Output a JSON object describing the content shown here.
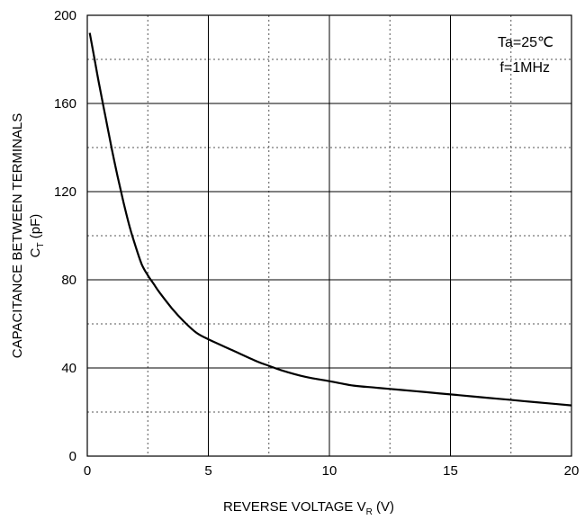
{
  "chart_data": {
    "type": "line",
    "xlabel": "REVERSE VOLTAGE V",
    "xlabel_subscript": "R",
    "xlabel_unit": " (V)",
    "ylabel": "CAPACITANCE BETWEEN TERMINALS",
    "ylabel2": "C",
    "ylabel2_subscript": "T",
    "ylabel2_unit": " (pF)",
    "xlim": [
      0,
      20
    ],
    "ylim": [
      0,
      200
    ],
    "x_major_ticks": [
      0,
      5,
      10,
      15,
      20
    ],
    "x_minor_ticks": [
      2.5,
      7.5,
      12.5,
      17.5
    ],
    "y_major_ticks": [
      0,
      40,
      80,
      120,
      160,
      200
    ],
    "y_minor_ticks": [
      20,
      60,
      100,
      140,
      180
    ],
    "x_tick_labels": [
      "0",
      "5",
      "10",
      "15",
      "20"
    ],
    "y_tick_labels": [
      "0",
      "40",
      "80",
      "120",
      "160",
      "200"
    ],
    "grid": "major solid, minor dotted",
    "annotations": [
      "Ta=25℃",
      "f=1MHz"
    ],
    "annotation_position": "top-right",
    "series": [
      {
        "x": [
          0.1,
          0.3,
          0.5,
          0.75,
          1.0,
          1.25,
          1.5,
          1.75,
          2.0,
          2.25,
          2.5,
          2.75,
          3.0,
          3.5,
          4.0,
          4.5,
          5.0,
          6.0,
          7.0,
          7.5,
          8.0,
          9.0,
          10.0,
          11.0,
          12.0,
          13.0,
          14.0,
          15.0,
          16.0,
          17.0,
          18.0,
          19.0,
          20.0
        ],
        "y": [
          192,
          180,
          168,
          154,
          140,
          127,
          115,
          104,
          95,
          87,
          82,
          78,
          74,
          67,
          61,
          56,
          53,
          48,
          43,
          41,
          39,
          36,
          34,
          32,
          31,
          30,
          29,
          28,
          27,
          26,
          25,
          24,
          23
        ]
      }
    ],
    "line_color": "#000000"
  }
}
